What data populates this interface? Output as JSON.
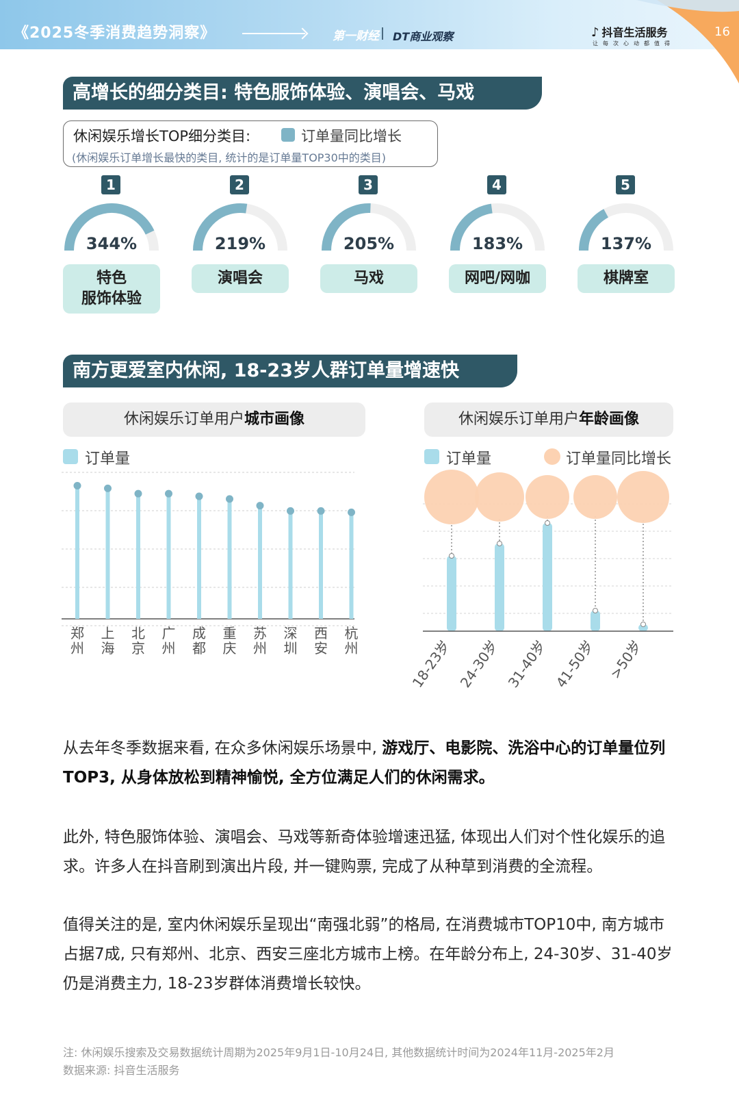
{
  "header": {
    "title": "《2025冬季消费趋势洞察》",
    "logo_yicai": "第一财经",
    "logo_dt": "DT商业观察",
    "logo_douyin": "抖音生活服务",
    "tagline": "让每次心动都值得",
    "page_number": "16"
  },
  "section1": {
    "title": "高增长的细分类目: 特色服饰体验、演唱会、马戏",
    "legend_title": "休闲娱乐增长TOP细分类目:",
    "legend_series": "订单量同比增长",
    "legend_note": "(休闲娱乐订单增长最快的类目, 统计的是订单量TOP30中的类目)",
    "items": [
      {
        "rank": "1",
        "growth": "344%",
        "value": 344,
        "label_line1": "特色",
        "label_line2": "服饰体验"
      },
      {
        "rank": "2",
        "growth": "219%",
        "value": 219,
        "label_line1": "演唱会",
        "label_line2": ""
      },
      {
        "rank": "3",
        "growth": "205%",
        "value": 205,
        "label_line1": "马戏",
        "label_line2": ""
      },
      {
        "rank": "4",
        "growth": "183%",
        "value": 183,
        "label_line1": "网吧/网咖",
        "label_line2": ""
      },
      {
        "rank": "5",
        "growth": "137%",
        "value": 137,
        "label_line1": "棋牌室",
        "label_line2": ""
      }
    ]
  },
  "section2": {
    "title": "南方更爱室内休闲, 18-23岁人群订单量增速快",
    "city_panel_title_plain": "休闲娱乐订单用户",
    "city_panel_title_bold": "城市画像",
    "age_panel_title_plain": "休闲娱乐订单用户",
    "age_panel_title_bold": "年龄画像",
    "legend_orders": "订单量",
    "legend_growth": "订单量同比增长"
  },
  "chart_data": [
    {
      "type": "lollipop",
      "title": "休闲娱乐订单用户城市画像",
      "categories": [
        "郑州",
        "上海",
        "北京",
        "广州",
        "成都",
        "重庆",
        "苏州",
        "深圳",
        "西安",
        "杭州"
      ],
      "series": [
        {
          "name": "订单量",
          "values": [
            100,
            98,
            94,
            94,
            92,
            90,
            85,
            81,
            81,
            80
          ]
        }
      ],
      "ylim": [
        0,
        110
      ],
      "grid": true,
      "legend": "top-left"
    },
    {
      "type": "bar",
      "title": "休闲娱乐订单用户年龄画像",
      "categories": [
        "18-23岁",
        "24-30岁",
        "31-40岁",
        "41-50岁",
        ">50岁"
      ],
      "series": [
        {
          "name": "订单量",
          "values": [
            55,
            64,
            79,
            15,
            5
          ]
        },
        {
          "name": "订单量同比增长",
          "values": [
            9,
            8,
            7,
            7,
            8
          ]
        }
      ],
      "ylim": [
        0,
        100
      ],
      "grid": true,
      "legend": "top"
    }
  ],
  "body": {
    "p1_a": "从去年冬季数据来看, 在众多休闲娱乐场景中, ",
    "p1_b": "游戏厅、电影院、洗浴中心的订单量位列TOP3, 从身体放松到精神愉悦, 全方位满足人们的休闲需求。",
    "p2": "此外, 特色服饰体验、演唱会、马戏等新奇体验增速迅猛, 体现出人们对个性化娱乐的追求。许多人在抖音刷到演出片段, 并一键购票, 完成了从种草到消费的全流程。",
    "p3": "值得关注的是, 室内休闲娱乐呈现出“南强北弱”的格局, 在消费城市TOP10中, 南方城市占据7成, 只有郑州、北京、西安三座北方城市上榜。在年龄分布上, 24-30岁、31-40岁仍是消费主力, 18-23岁群体消费增长较快。"
  },
  "footnote": {
    "note": "注: 休闲娱乐搜索及交易数据统计周期为2025年9月1日-10月24日, 其他数据统计时间为2024年11月-2025年2月",
    "source": "数据来源: 抖音生活服务"
  },
  "colors": {
    "banner": "#2f5866",
    "gauge_fill": "#7fb4c6",
    "gauge_track": "#efefef",
    "label_bg": "#cdece8",
    "bar": "#a9dcea",
    "bubble": "#fcd2b2",
    "corner_orange": "#f7a95d"
  }
}
